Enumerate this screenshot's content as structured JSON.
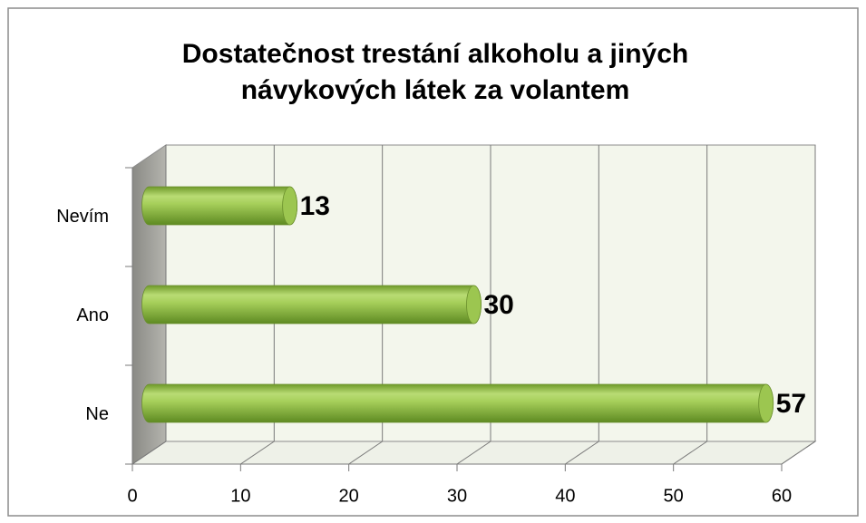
{
  "chart_data": {
    "type": "bar",
    "orientation": "horizontal",
    "style": "3d-cylinder",
    "title": "Dostatečnost trestání alkoholu a jiných návykových látek za volantem",
    "categories": [
      "Ne",
      "Ano",
      "Nevím"
    ],
    "values": [
      57,
      30,
      13
    ],
    "color": "#8fbc3f",
    "xlim": [
      0,
      60
    ],
    "xticks": [
      0,
      10,
      20,
      30,
      40,
      50,
      60
    ],
    "grid": true
  }
}
